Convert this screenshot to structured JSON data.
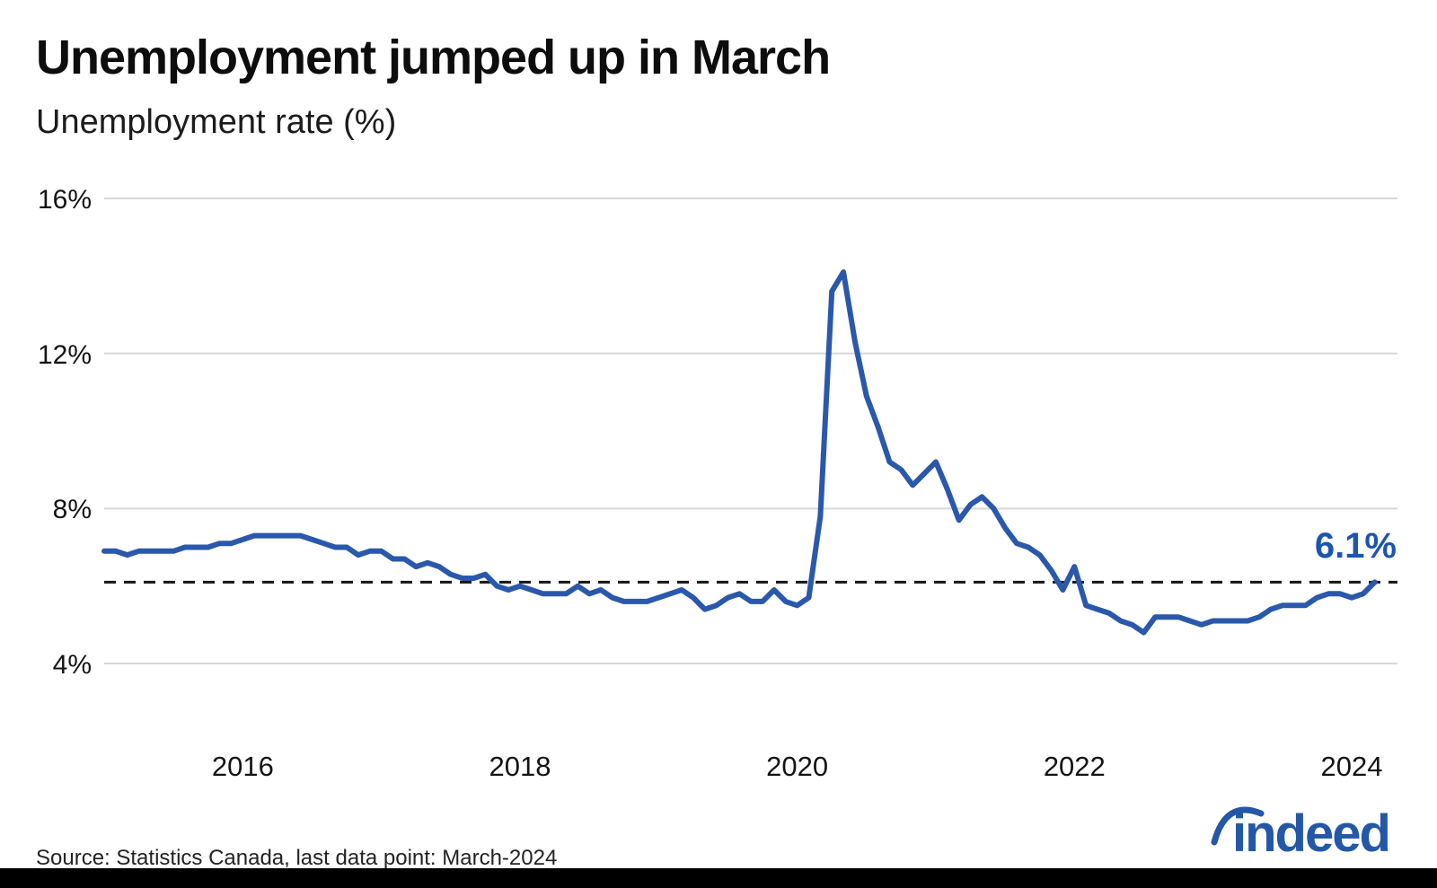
{
  "branding": {
    "logo_text": "indeed"
  },
  "chart_data": {
    "type": "line",
    "title": "Unemployment jumped up in March",
    "subtitle": "Unemployment rate (%)",
    "source": "Source: Statistics Canada, last data point: March-2024",
    "x_start": "2015-01",
    "x_end": "2024-03",
    "x_frequency": "monthly",
    "x_tick_years": [
      2016,
      2018,
      2020,
      2022,
      2024
    ],
    "x_tick_labels": [
      "2016",
      "2018",
      "2020",
      "2022",
      "2024"
    ],
    "y_ticks": [
      4,
      8,
      12,
      16
    ],
    "y_tick_labels": [
      "4%",
      "8%",
      "12%",
      "16%"
    ],
    "ylim": [
      4,
      16
    ],
    "grid": "horizontal",
    "legend": "none",
    "reference_line": {
      "value": 6.1,
      "style": "dashed",
      "label": "6.1%"
    },
    "series": [
      {
        "name": "Unemployment rate (%)",
        "values": [
          6.9,
          6.9,
          6.8,
          6.9,
          6.9,
          6.9,
          6.9,
          7.0,
          7.0,
          7.0,
          7.1,
          7.1,
          7.2,
          7.3,
          7.3,
          7.3,
          7.3,
          7.3,
          7.2,
          7.1,
          7.0,
          7.0,
          6.8,
          6.9,
          6.9,
          6.7,
          6.7,
          6.5,
          6.6,
          6.5,
          6.3,
          6.2,
          6.2,
          6.3,
          6.0,
          5.9,
          6.0,
          5.9,
          5.8,
          5.8,
          5.8,
          6.0,
          5.8,
          5.9,
          5.7,
          5.6,
          5.6,
          5.6,
          5.7,
          5.8,
          5.9,
          5.7,
          5.4,
          5.5,
          5.7,
          5.8,
          5.6,
          5.6,
          5.9,
          5.6,
          5.5,
          5.7,
          7.8,
          13.6,
          14.1,
          12.3,
          10.9,
          10.1,
          9.2,
          9.0,
          8.6,
          8.9,
          9.2,
          8.5,
          7.7,
          8.1,
          8.3,
          8.0,
          7.5,
          7.1,
          7.0,
          6.8,
          6.4,
          5.9,
          6.5,
          5.5,
          5.4,
          5.3,
          5.1,
          5.0,
          4.8,
          5.2,
          5.2,
          5.2,
          5.1,
          5.0,
          5.1,
          5.1,
          5.1,
          5.1,
          5.2,
          5.4,
          5.5,
          5.5,
          5.5,
          5.7,
          5.8,
          5.8,
          5.7,
          5.8,
          6.1
        ]
      }
    ],
    "colors": {
      "line": "#2a58ab",
      "grid": "#d8d8d8",
      "reference": "#161616",
      "annotation": "#1d55ae",
      "logo": "#2457a7",
      "axis_text": "#141414"
    }
  }
}
